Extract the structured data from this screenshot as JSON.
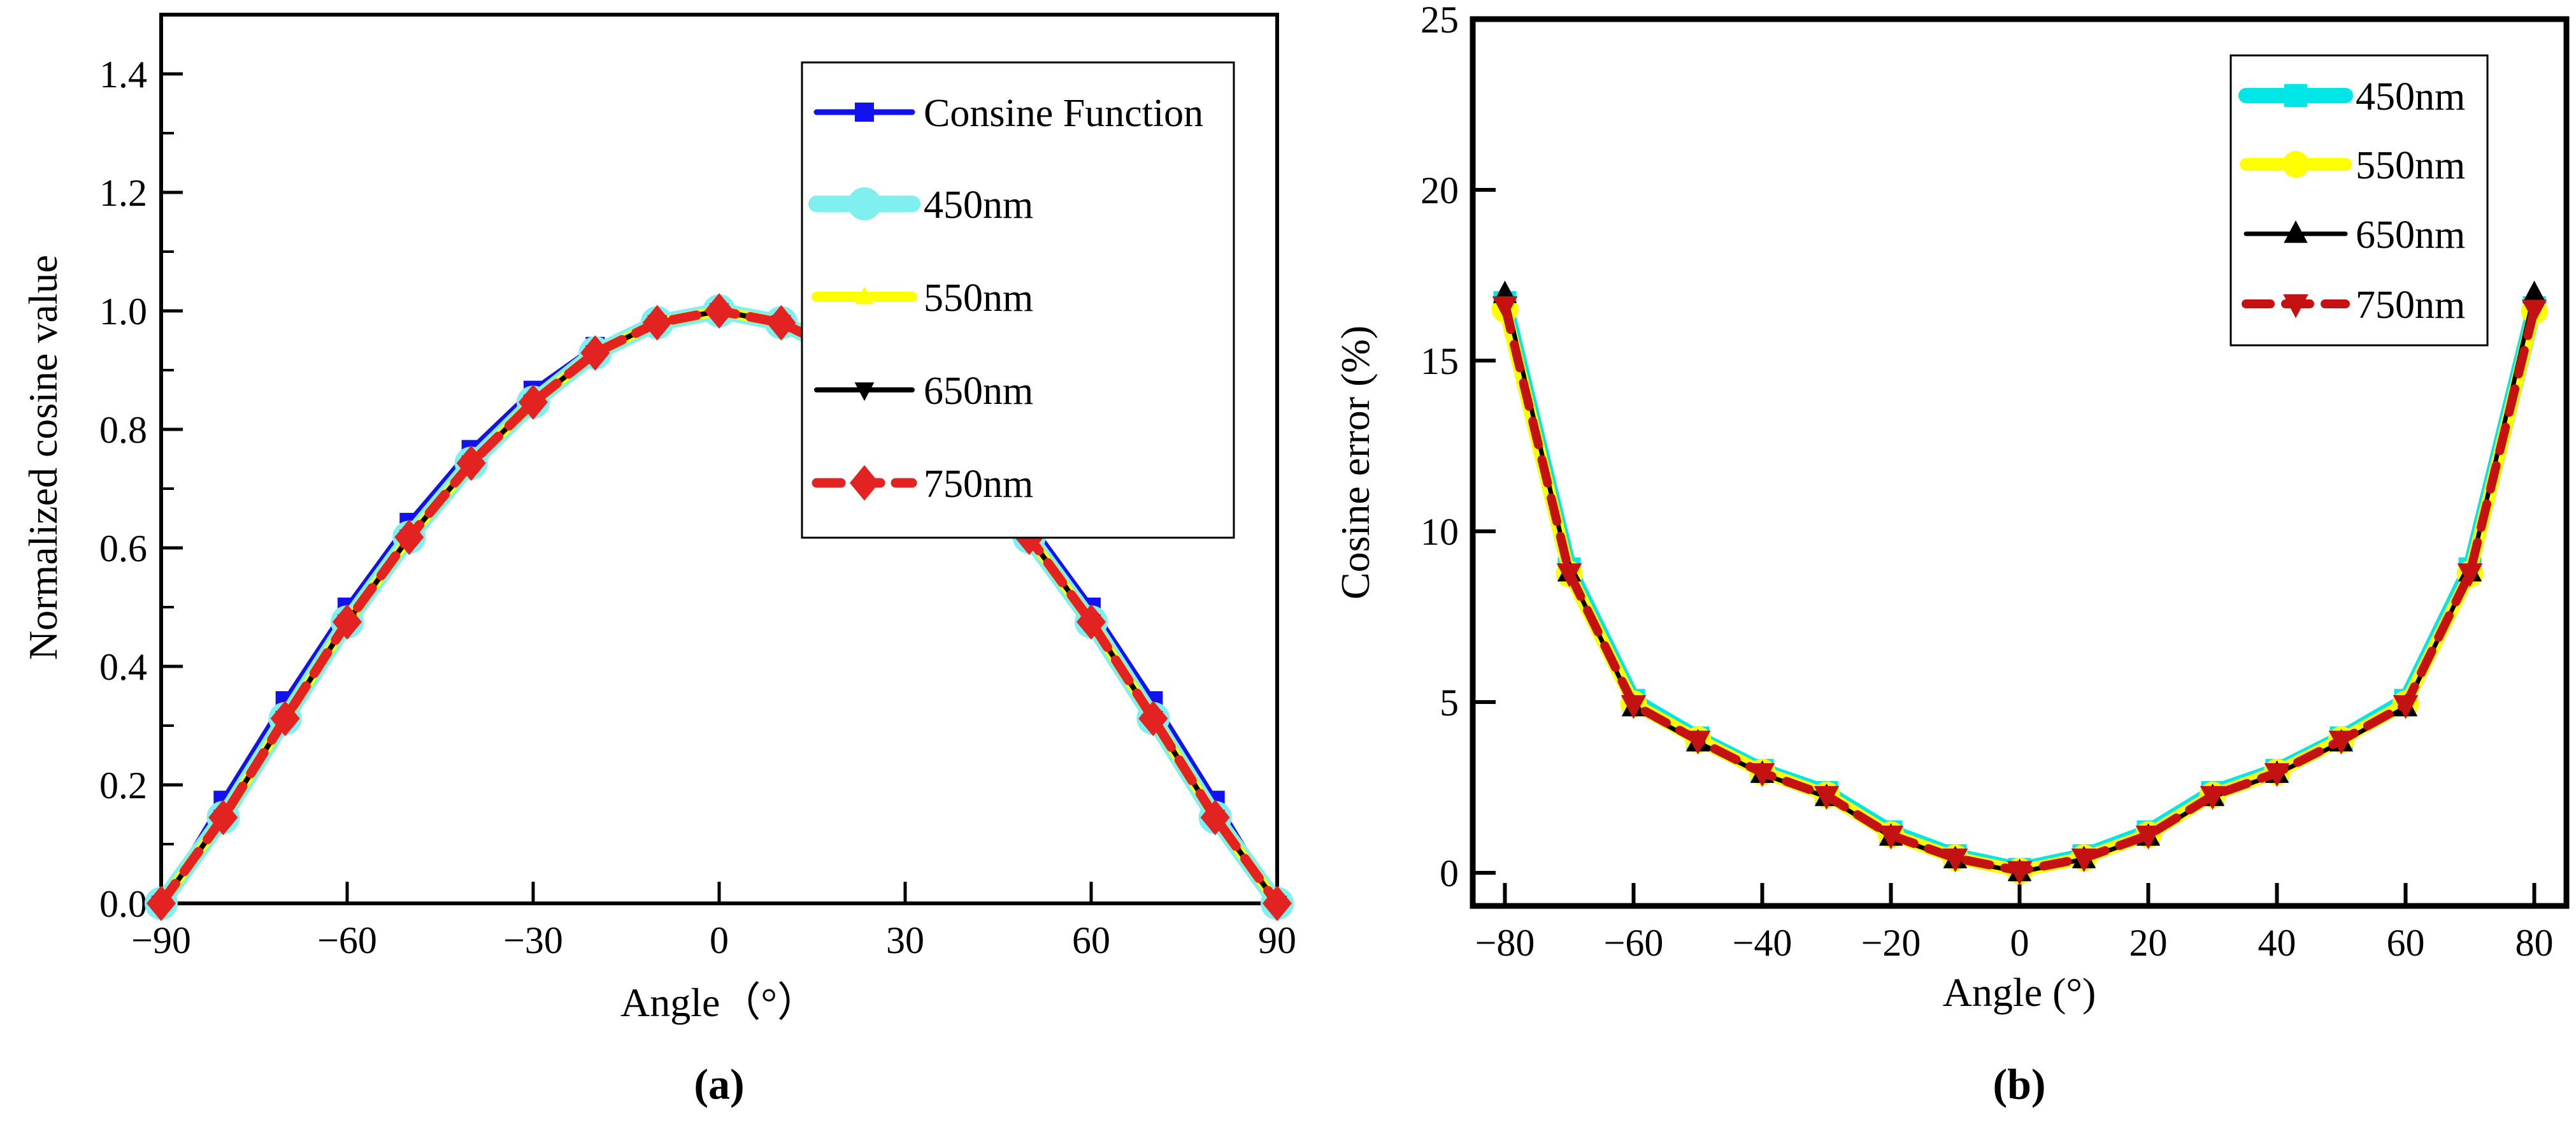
{
  "figure": {
    "background": "#ffffff",
    "text_color": "#000000"
  },
  "chart_data": [
    {
      "type": "line",
      "panel": "a",
      "caption": "(a)",
      "xlabel": "Angle（°）",
      "ylabel": "Normalized cosine value",
      "grid": false,
      "legend_position": "upper right inside",
      "xlim": [
        -90,
        90
      ],
      "ylim": [
        0,
        1.5
      ],
      "x": [
        -90,
        -80,
        -70,
        -60,
        -50,
        -40,
        -30,
        -20,
        -10,
        0,
        10,
        20,
        30,
        40,
        50,
        60,
        70,
        80,
        90
      ],
      "xticks": {
        "values": [
          -90,
          -60,
          -30,
          0,
          30,
          60,
          90
        ],
        "labels": [
          "−90",
          "−60",
          "−30",
          "0",
          "30",
          "60",
          "90"
        ]
      },
      "yticks": {
        "values": [
          0,
          0.2,
          0.4,
          0.6,
          0.8,
          1.0,
          1.2,
          1.4
        ],
        "labels": [
          "0.0",
          "0.2",
          "0.4",
          "0.6",
          "0.8",
          "1.0",
          "1.2",
          "1.4"
        ]
      },
      "yminor": [
        0.1,
        0.3,
        0.5,
        0.7,
        0.9,
        1.1,
        1.3
      ],
      "series": [
        {
          "name": "Consine Function",
          "color": "#1212EF",
          "marker": "square",
          "marker_size": 30,
          "line_width": 9,
          "dash": null,
          "values": [
            0,
            0.174,
            0.342,
            0.5,
            0.643,
            0.766,
            0.866,
            0.94,
            0.985,
            1,
            0.985,
            0.94,
            0.866,
            0.766,
            0.643,
            0.5,
            0.342,
            0.174,
            0
          ]
        },
        {
          "name": "450nm",
          "color": "#7FF0EF",
          "marker": "circle",
          "marker_size": 52,
          "line_width": 26,
          "dash": null,
          "values": [
            0,
            0.145,
            0.312,
            0.475,
            0.618,
            0.743,
            0.846,
            0.929,
            0.98,
            1,
            0.98,
            0.929,
            0.846,
            0.743,
            0.618,
            0.475,
            0.312,
            0.145,
            0
          ]
        },
        {
          "name": "550nm",
          "color": "#FFFF00",
          "marker": "triangle-up",
          "marker_size": 26,
          "line_width": 16,
          "dash": null,
          "values": [
            0,
            0.145,
            0.312,
            0.475,
            0.618,
            0.743,
            0.846,
            0.929,
            0.98,
            1,
            0.98,
            0.929,
            0.846,
            0.743,
            0.618,
            0.475,
            0.312,
            0.145,
            0
          ]
        },
        {
          "name": "650nm",
          "color": "#000000",
          "marker": "triangle-down",
          "marker_size": 28,
          "line_width": 8,
          "dash": null,
          "values": [
            0,
            0.145,
            0.312,
            0.475,
            0.618,
            0.743,
            0.846,
            0.929,
            0.98,
            1,
            0.98,
            0.929,
            0.846,
            0.743,
            0.618,
            0.475,
            0.312,
            0.145,
            0
          ]
        },
        {
          "name": "750nm",
          "color": "#E32222",
          "marker": "diamond",
          "marker_size": 48,
          "line_width": 15,
          "dash": "38 24",
          "values": [
            0,
            0.145,
            0.312,
            0.475,
            0.618,
            0.743,
            0.846,
            0.929,
            0.98,
            1,
            0.98,
            0.929,
            0.846,
            0.743,
            0.618,
            0.475,
            0.312,
            0.145,
            0
          ]
        }
      ]
    },
    {
      "type": "line",
      "panel": "b",
      "caption": "(b)",
      "xlabel": "Angle (°)",
      "ylabel": "Cosine error (%)",
      "grid": false,
      "legend_position": "upper right inside",
      "xlim": [
        -85,
        85
      ],
      "ylim": [
        -0.97,
        25
      ],
      "x": [
        -80,
        -70,
        -60,
        -50,
        -40,
        -30,
        -20,
        -10,
        0,
        10,
        20,
        30,
        40,
        50,
        60,
        70,
        80
      ],
      "xticks": {
        "values": [
          -80,
          -60,
          -40,
          -20,
          0,
          20,
          40,
          60,
          80
        ],
        "labels": [
          "−80",
          "−60",
          "−40",
          "−20",
          "0",
          "20",
          "40",
          "60",
          "80"
        ]
      },
      "yticks": {
        "values": [
          0,
          5,
          10,
          15,
          20,
          25
        ],
        "labels": [
          "0",
          "5",
          "10",
          "15",
          "20",
          "25"
        ]
      },
      "yminor": [],
      "series": [
        {
          "name": "450nm",
          "color": "#00E6E6",
          "marker": "square",
          "marker_size": 36,
          "line_width": 24,
          "dash": null,
          "values": [
            16.7,
            8.9,
            5.05,
            3.95,
            3.0,
            2.35,
            1.2,
            0.5,
            0.1,
            0.5,
            1.2,
            2.35,
            3.0,
            3.95,
            5.05,
            8.9,
            16.55
          ]
        },
        {
          "name": "550nm",
          "color": "#FFFF00",
          "marker": "circle",
          "marker_size": 42,
          "line_width": 20,
          "dash": null,
          "values": [
            16.5,
            8.75,
            4.95,
            3.9,
            2.95,
            2.28,
            1.12,
            0.44,
            0.05,
            0.44,
            1.12,
            2.28,
            2.95,
            3.9,
            4.95,
            8.75,
            16.45
          ]
        },
        {
          "name": "650nm",
          "color": "#000000",
          "marker": "triangle-up",
          "marker_size": 34,
          "line_width": 7,
          "dash": null,
          "values": [
            16.95,
            8.8,
            4.85,
            3.82,
            2.9,
            2.22,
            1.06,
            0.4,
            0.02,
            0.4,
            1.06,
            2.22,
            2.9,
            3.82,
            4.85,
            8.8,
            16.95
          ]
        },
        {
          "name": "750nm",
          "color": "#C41212",
          "marker": "triangle-down",
          "marker_size": 36,
          "line_width": 14,
          "dash": "38 24",
          "values": [
            16.6,
            8.78,
            4.92,
            3.88,
            2.93,
            2.26,
            1.1,
            0.43,
            0.06,
            0.43,
            1.1,
            2.26,
            2.93,
            3.88,
            4.92,
            8.78,
            16.5
          ]
        }
      ]
    }
  ]
}
